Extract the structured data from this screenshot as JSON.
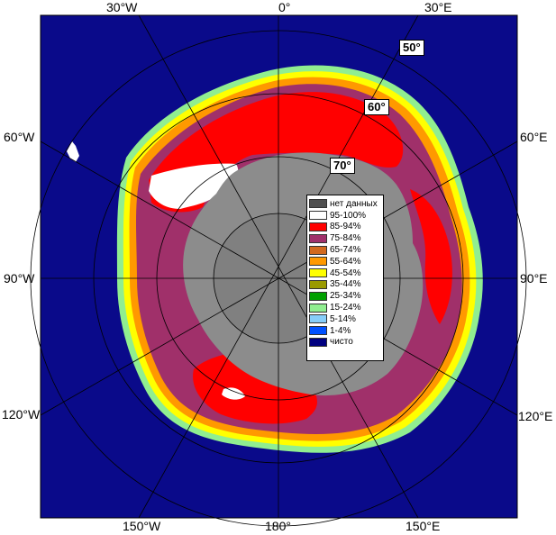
{
  "map": {
    "lon_labels_top": [
      "30°W",
      "0°",
      "30°E"
    ],
    "lon_labels_bottom": [
      "150°W",
      "180°",
      "150°E"
    ],
    "lon_labels_left": [
      "60°W",
      "90°W",
      "120°W"
    ],
    "lon_labels_right": [
      "60°E",
      "90°E",
      "120°E"
    ],
    "lat_labels": [
      "50°",
      "60°",
      "70°"
    ]
  },
  "legend": {
    "items": [
      {
        "label": "нет данных",
        "color": "#505050"
      },
      {
        "label": "95-100%",
        "color": "#ffffff"
      },
      {
        "label": "85-94%",
        "color": "#ff0000"
      },
      {
        "label": "75-84%",
        "color": "#a0306a"
      },
      {
        "label": "65-74%",
        "color": "#d2691e"
      },
      {
        "label": "55-64%",
        "color": "#ff9900"
      },
      {
        "label": "45-54%",
        "color": "#ffff00"
      },
      {
        "label": "35-44%",
        "color": "#9a9a00"
      },
      {
        "label": "25-34%",
        "color": "#00a000"
      },
      {
        "label": "15-24%",
        "color": "#90ee90"
      },
      {
        "label": "5-14%",
        "color": "#87cefa"
      },
      {
        "label": "1-4%",
        "color": "#0050ff"
      },
      {
        "label": "чисто",
        "color": "#000080"
      }
    ]
  },
  "colors": {
    "ocean": "#0a0a8a",
    "continent": "#8c8c8c",
    "land_other": "#808080",
    "grid": "#000000"
  }
}
